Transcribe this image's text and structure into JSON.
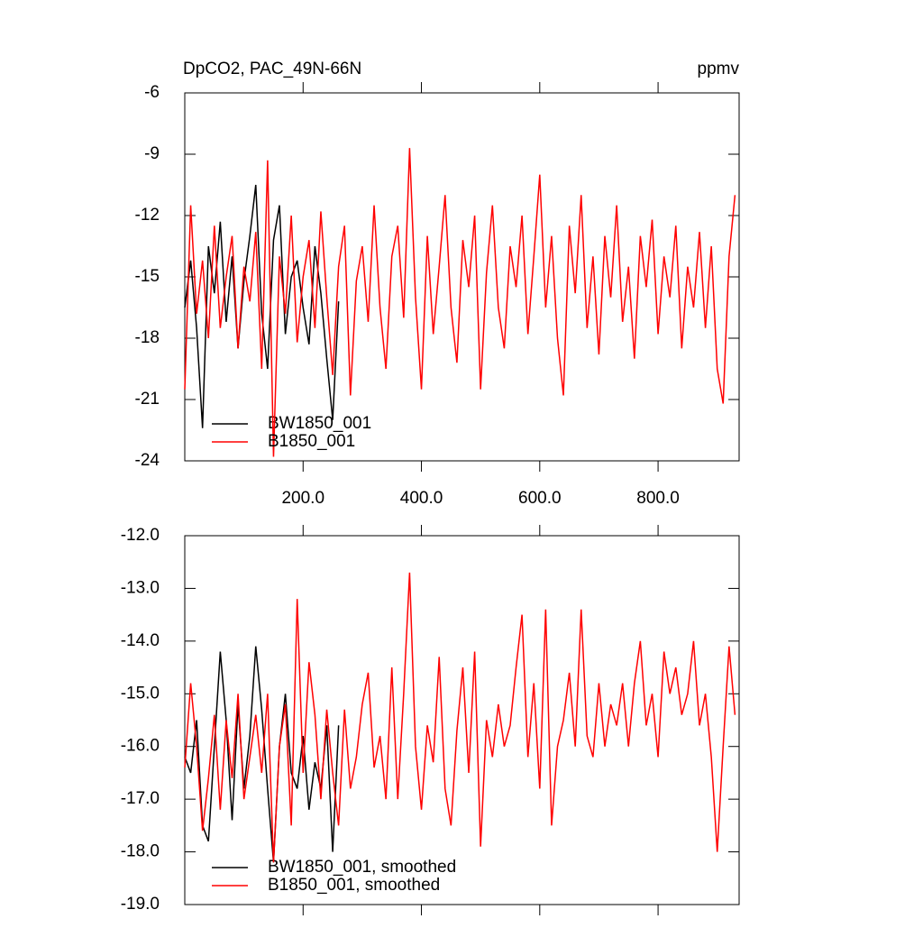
{
  "chart_data": [
    {
      "type": "line",
      "title": "DpCO2, PAC_49N-66N",
      "units": "ppmv",
      "xlim": [
        0,
        937
      ],
      "ylim": [
        -24,
        -6
      ],
      "xticks": [
        {
          "value": 200,
          "label": "200.0"
        },
        {
          "value": 400,
          "label": "400.0"
        },
        {
          "value": 600,
          "label": "600.0"
        },
        {
          "value": 800,
          "label": "800.0"
        }
      ],
      "show_xtick_labels": true,
      "yticks": [
        -6,
        -9,
        -12,
        -15,
        -18,
        -21,
        -24
      ],
      "legend": "bottom-left",
      "series": [
        {
          "name": "BW1850_001",
          "color": "#000000",
          "x": [
            0,
            10,
            20,
            30,
            40,
            50,
            60,
            70,
            80,
            90,
            100,
            110,
            120,
            130,
            140,
            150,
            160,
            170,
            180,
            190,
            200,
            210,
            220,
            230,
            240,
            250,
            260
          ],
          "values": [
            -16.5,
            -14.2,
            -17.5,
            -22.4,
            -13.5,
            -15.8,
            -12.3,
            -17.2,
            -14.0,
            -18.5,
            -15.2,
            -13.0,
            -10.5,
            -16.8,
            -19.5,
            -13.2,
            -11.5,
            -17.8,
            -15.0,
            -14.2,
            -16.5,
            -18.3,
            -13.5,
            -15.8,
            -19.0,
            -22.0,
            -16.2
          ]
        },
        {
          "name": "B1850_001",
          "color": "#ff0000",
          "x": [
            0,
            10,
            20,
            30,
            40,
            50,
            60,
            70,
            80,
            90,
            100,
            110,
            120,
            130,
            140,
            150,
            160,
            170,
            180,
            190,
            200,
            210,
            220,
            230,
            240,
            250,
            260,
            270,
            280,
            290,
            300,
            310,
            320,
            330,
            340,
            350,
            360,
            370,
            380,
            390,
            400,
            410,
            420,
            430,
            440,
            450,
            460,
            470,
            480,
            490,
            500,
            510,
            520,
            530,
            540,
            550,
            560,
            570,
            580,
            590,
            600,
            610,
            620,
            630,
            640,
            650,
            660,
            670,
            680,
            690,
            700,
            710,
            720,
            730,
            740,
            750,
            760,
            770,
            780,
            790,
            800,
            810,
            820,
            830,
            840,
            850,
            860,
            870,
            880,
            890,
            900,
            910,
            920,
            930
          ],
          "values": [
            -20.5,
            -11.5,
            -16.8,
            -14.2,
            -18.0,
            -12.5,
            -17.5,
            -15.0,
            -13.0,
            -18.5,
            -14.5,
            -16.2,
            -12.8,
            -19.5,
            -9.3,
            -23.8,
            -14.0,
            -16.8,
            -12.0,
            -18.2,
            -15.0,
            -13.2,
            -17.5,
            -11.8,
            -16.0,
            -19.8,
            -14.5,
            -12.5,
            -20.8,
            -15.2,
            -13.5,
            -17.2,
            -11.5,
            -16.5,
            -19.5,
            -14.0,
            -12.5,
            -17.0,
            -8.7,
            -16.0,
            -20.5,
            -13.0,
            -17.8,
            -14.5,
            -11.0,
            -16.5,
            -19.2,
            -13.2,
            -15.5,
            -12.0,
            -20.5,
            -14.8,
            -11.5,
            -16.5,
            -18.5,
            -13.5,
            -15.5,
            -12.0,
            -17.8,
            -14.0,
            -10.0,
            -16.5,
            -13.0,
            -18.0,
            -20.8,
            -12.5,
            -15.8,
            -11.0,
            -17.5,
            -14.0,
            -18.8,
            -13.0,
            -16.0,
            -11.5,
            -17.2,
            -14.5,
            -19.0,
            -13.0,
            -15.5,
            -12.2,
            -17.8,
            -14.0,
            -16.0,
            -12.5,
            -18.5,
            -14.5,
            -16.5,
            -12.8,
            -17.5,
            -13.5,
            -19.5,
            -21.2,
            -14.0,
            -11.0
          ]
        }
      ]
    },
    {
      "type": "line",
      "xlim": [
        0,
        937
      ],
      "ylim": [
        -19,
        -12
      ],
      "xticks": [
        200,
        400,
        600,
        800
      ],
      "show_xtick_labels": false,
      "yticks": [
        {
          "value": -12,
          "label": "-12.0"
        },
        {
          "value": -13,
          "label": "-13.0"
        },
        {
          "value": -14,
          "label": "-14.0"
        },
        {
          "value": -15,
          "label": "-15.0"
        },
        {
          "value": -16,
          "label": "-16.0"
        },
        {
          "value": -17,
          "label": "-17.0"
        },
        {
          "value": -18,
          "label": "-18.0"
        },
        {
          "value": -19,
          "label": "-19.0"
        }
      ],
      "legend": "bottom-left",
      "series": [
        {
          "name": "BW1850_001, smoothed",
          "color": "#000000",
          "x": [
            0,
            10,
            20,
            30,
            40,
            50,
            60,
            70,
            80,
            90,
            100,
            110,
            120,
            130,
            140,
            150,
            160,
            170,
            180,
            190,
            200,
            210,
            220,
            230,
            240,
            250,
            260
          ],
          "values": [
            -16.2,
            -16.5,
            -15.5,
            -17.5,
            -17.8,
            -16.0,
            -14.2,
            -15.5,
            -17.4,
            -15.2,
            -16.8,
            -15.8,
            -14.1,
            -15.3,
            -16.8,
            -18.2,
            -16.0,
            -15.0,
            -16.5,
            -16.8,
            -15.8,
            -17.2,
            -16.3,
            -16.8,
            -15.6,
            -18.0,
            -15.6
          ]
        },
        {
          "name": "B1850_001, smoothed",
          "color": "#ff0000",
          "x": [
            0,
            10,
            20,
            30,
            40,
            50,
            60,
            70,
            80,
            90,
            100,
            110,
            120,
            130,
            140,
            150,
            160,
            170,
            180,
            190,
            200,
            210,
            220,
            230,
            240,
            250,
            260,
            270,
            280,
            290,
            300,
            310,
            320,
            330,
            340,
            350,
            360,
            370,
            380,
            390,
            400,
            410,
            420,
            430,
            440,
            450,
            460,
            470,
            480,
            490,
            500,
            510,
            520,
            530,
            540,
            550,
            560,
            570,
            580,
            590,
            600,
            610,
            620,
            630,
            640,
            650,
            660,
            670,
            680,
            690,
            700,
            710,
            720,
            730,
            740,
            750,
            760,
            770,
            780,
            790,
            800,
            810,
            820,
            830,
            840,
            850,
            860,
            870,
            880,
            890,
            900,
            910,
            920,
            930
          ],
          "values": [
            -16.4,
            -14.8,
            -16.0,
            -17.6,
            -16.6,
            -15.4,
            -17.2,
            -15.5,
            -16.6,
            -15.0,
            -17.0,
            -16.2,
            -15.4,
            -16.5,
            -15.0,
            -18.2,
            -16.0,
            -15.2,
            -17.5,
            -13.2,
            -16.5,
            -14.4,
            -15.4,
            -17.0,
            -15.3,
            -16.5,
            -17.5,
            -15.3,
            -16.8,
            -16.2,
            -15.2,
            -14.6,
            -16.4,
            -15.8,
            -17.0,
            -14.5,
            -17.0,
            -15.0,
            -12.7,
            -16.0,
            -17.2,
            -15.6,
            -16.3,
            -14.3,
            -16.8,
            -17.5,
            -15.7,
            -14.5,
            -16.5,
            -14.2,
            -17.9,
            -15.5,
            -16.2,
            -15.2,
            -16.0,
            -15.6,
            -14.5,
            -13.5,
            -16.2,
            -14.8,
            -16.8,
            -13.4,
            -17.5,
            -16.0,
            -15.5,
            -14.6,
            -16.0,
            -13.4,
            -15.8,
            -16.2,
            -14.8,
            -16.0,
            -15.2,
            -15.6,
            -14.8,
            -16.0,
            -14.8,
            -14.0,
            -15.6,
            -15.0,
            -16.2,
            -14.2,
            -15.0,
            -14.5,
            -15.4,
            -15.0,
            -14.0,
            -15.6,
            -15.0,
            -16.2,
            -18.0,
            -16.0,
            -14.1,
            -15.4
          ]
        }
      ]
    }
  ]
}
